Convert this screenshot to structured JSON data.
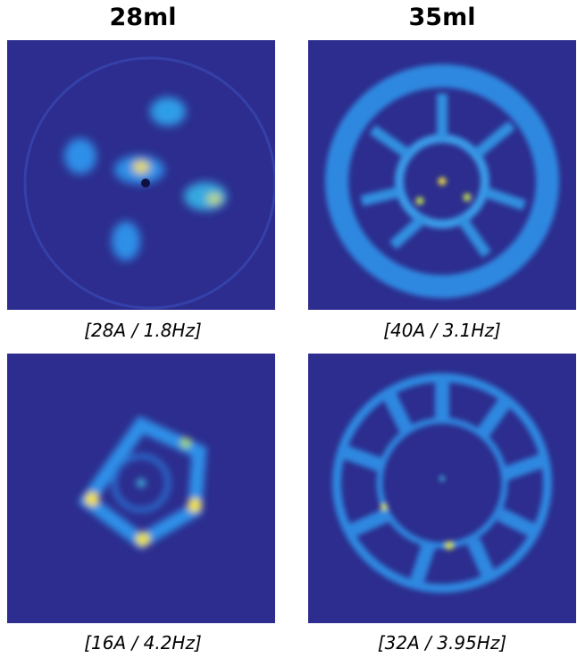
{
  "columns": [
    {
      "title": "28ml"
    },
    {
      "title": "35ml"
    }
  ],
  "panels": [
    {
      "caption": "[28A / 1.8Hz]"
    },
    {
      "caption": "[40A / 3.1Hz]"
    },
    {
      "caption": "[16A / 4.2Hz]"
    },
    {
      "caption": "[32A / 3.95Hz]"
    }
  ]
}
